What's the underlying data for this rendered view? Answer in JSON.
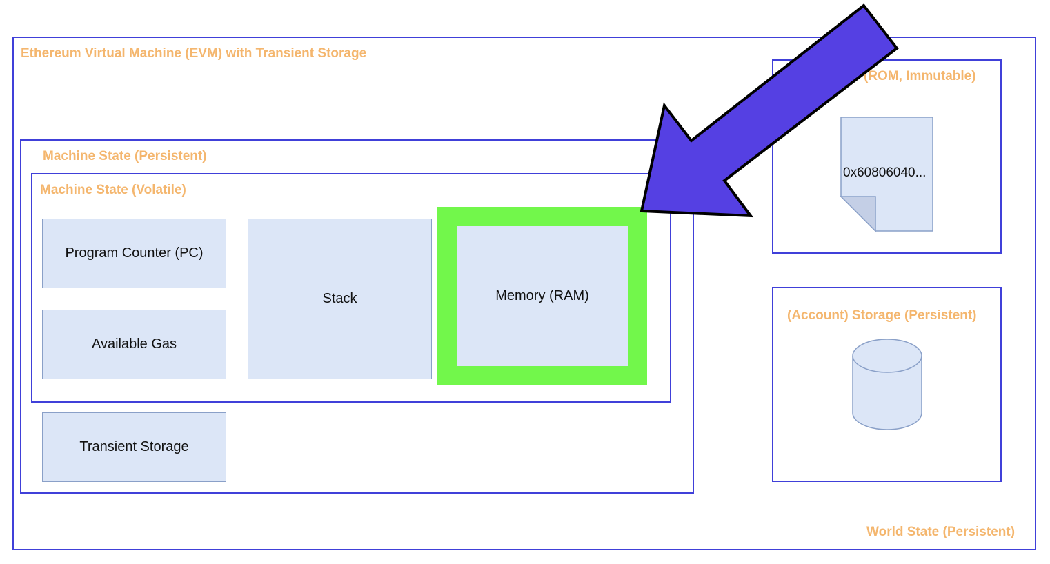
{
  "world_state": {
    "label": "World State (Persistent)"
  },
  "evm": {
    "label": "Ethereum Virtual Machine (EVM) with Transient Storage"
  },
  "machine_state_persistent": {
    "label": "Machine State (Persistent)"
  },
  "machine_state_volatile": {
    "label": "Machine State (Volatile)"
  },
  "components": {
    "program_counter": "Program Counter (PC)",
    "available_gas": "Available Gas",
    "stack": "Stack",
    "memory": "Memory (RAM)",
    "transient_storage": "Transient Storage"
  },
  "code": {
    "label": "(ROM, Immutable)",
    "bytecode": "0x60806040..."
  },
  "account_storage": {
    "label": "(Account) Storage (Persistent)"
  },
  "colors": {
    "frame": "#4040d9",
    "label": "#f4b66e",
    "box_fill": "#dce6f7",
    "highlight": "#72f74b",
    "arrow": "#5540e3"
  }
}
